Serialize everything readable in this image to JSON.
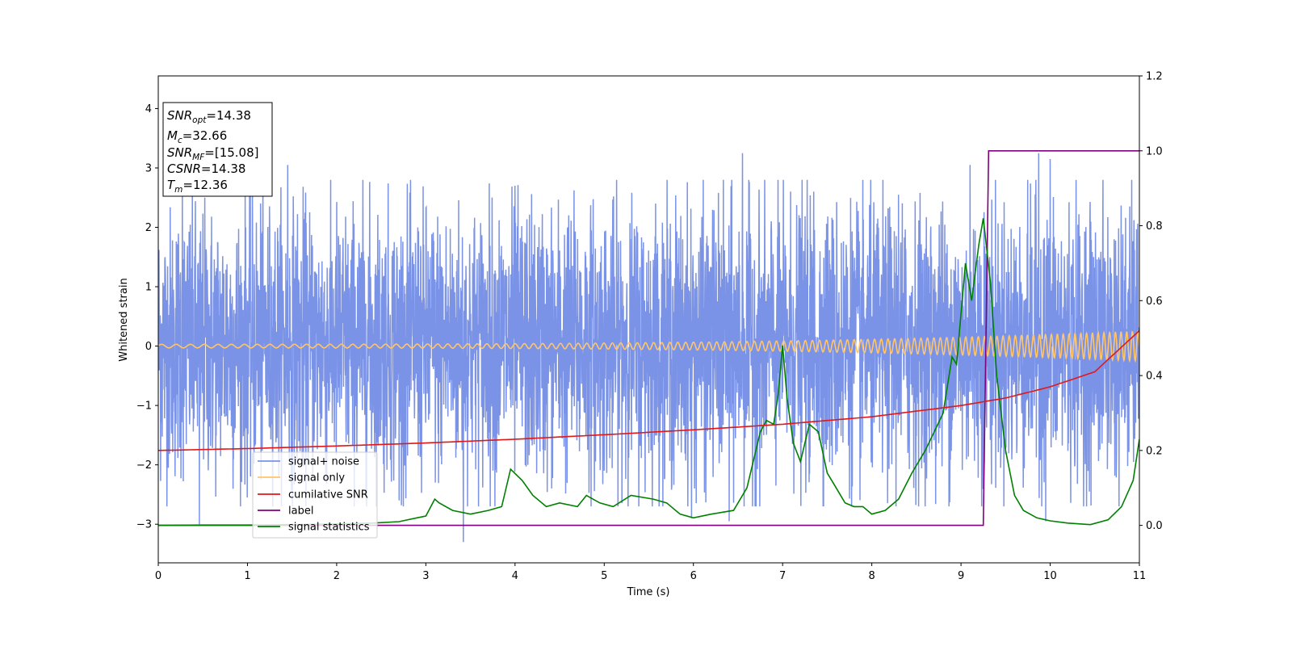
{
  "chart_data": {
    "type": "line",
    "xlabel": "Time (s)",
    "ylabel": "Whitened strain",
    "xlim": [
      0,
      11
    ],
    "ylim_left": [
      -3.65,
      4.55
    ],
    "ylim_right": [
      -0.1,
      1.2
    ],
    "x_ticks": [
      0,
      1,
      2,
      3,
      4,
      5,
      6,
      7,
      8,
      9,
      10,
      11
    ],
    "y_ticks_left": [
      -3,
      -2,
      -1,
      0,
      1,
      2,
      3,
      4
    ],
    "y_ticks_right": [
      "0.0",
      "0.2",
      "0.4",
      "0.6",
      "0.8",
      "1.0",
      "1.2"
    ],
    "info_box": [
      {
        "main": "SNR",
        "sub": "opt",
        "rest": "=14.38"
      },
      {
        "main": "M",
        "sub": "c",
        "rest": "=32.66"
      },
      {
        "main": "SNR",
        "sub": "MF",
        "rest": "=[15.08]"
      },
      {
        "main": "CSNR",
        "sub": "",
        "rest": "=14.38"
      },
      {
        "main": "T",
        "sub": "m",
        "rest": "=12.36"
      }
    ],
    "legend_position": "lower-left",
    "series": [
      {
        "name": "signal+ noise",
        "axis": "left",
        "color": "#7b93e6",
        "description": "dense noise trace",
        "envelope_low": -2.0,
        "envelope_high": 2.1,
        "peaks": [
          [
            0.27,
            2.6
          ],
          [
            1.45,
            3.05
          ],
          [
            4.0,
            2.7
          ],
          [
            6.55,
            3.25
          ],
          [
            7.35,
            2.6
          ],
          [
            8.3,
            2.55
          ],
          [
            9.1,
            3.05
          ],
          [
            9.87,
            3.25
          ],
          [
            10.0,
            3.15
          ],
          [
            0.46,
            -3.0
          ],
          [
            3.42,
            -3.3
          ],
          [
            5.98,
            -2.9
          ],
          [
            6.4,
            -2.95
          ],
          [
            9.95,
            -2.95
          ],
          [
            2.7,
            -2.6
          ]
        ]
      },
      {
        "name": "signal only",
        "axis": "left",
        "color": "#ffc56b",
        "description": "chirp oscillation around 0",
        "amplitude_start": 0.03,
        "amplitude_end": 0.25
      },
      {
        "name": "cumilative SNR",
        "axis": "right",
        "color": "#e01818",
        "x": [
          0,
          1,
          2,
          3,
          4,
          5,
          6,
          7,
          8,
          9,
          9.5,
          10,
          10.5,
          11
        ],
        "y": [
          0.2,
          0.205,
          0.212,
          0.22,
          0.23,
          0.242,
          0.255,
          0.27,
          0.29,
          0.32,
          0.34,
          0.37,
          0.41,
          0.52
        ]
      },
      {
        "name": "label",
        "axis": "right",
        "color": "#800080",
        "x": [
          0,
          9.25,
          9.31,
          11
        ],
        "y": [
          0,
          0,
          1.0,
          1.0
        ]
      },
      {
        "name": "signal statistics",
        "axis": "right",
        "color": "#008000",
        "x": [
          0,
          0.5,
          1,
          1.5,
          2,
          2.4,
          2.7,
          2.9,
          3.0,
          3.1,
          3.15,
          3.3,
          3.5,
          3.7,
          3.85,
          3.95,
          4.08,
          4.2,
          4.35,
          4.5,
          4.7,
          4.8,
          4.95,
          5.1,
          5.3,
          5.55,
          5.7,
          5.85,
          6.0,
          6.2,
          6.45,
          6.6,
          6.75,
          6.82,
          6.9,
          6.95,
          7.0,
          7.05,
          7.12,
          7.2,
          7.3,
          7.4,
          7.5,
          7.6,
          7.7,
          7.8,
          7.9,
          8.0,
          8.15,
          8.3,
          8.45,
          8.6,
          8.7,
          8.8,
          8.9,
          8.95,
          9.05,
          9.12,
          9.2,
          9.25,
          9.33,
          9.4,
          9.5,
          9.6,
          9.7,
          9.85,
          10.0,
          10.2,
          10.45,
          10.65,
          10.8,
          10.93,
          11.0
        ],
        "y": [
          0,
          0.001,
          0.001,
          0.002,
          0.004,
          0.006,
          0.01,
          0.02,
          0.025,
          0.07,
          0.06,
          0.04,
          0.03,
          0.04,
          0.05,
          0.15,
          0.12,
          0.08,
          0.05,
          0.06,
          0.05,
          0.08,
          0.06,
          0.05,
          0.08,
          0.07,
          0.06,
          0.03,
          0.02,
          0.03,
          0.04,
          0.1,
          0.25,
          0.28,
          0.27,
          0.35,
          0.48,
          0.34,
          0.22,
          0.17,
          0.27,
          0.25,
          0.14,
          0.1,
          0.06,
          0.05,
          0.05,
          0.03,
          0.04,
          0.07,
          0.14,
          0.2,
          0.25,
          0.3,
          0.45,
          0.43,
          0.7,
          0.6,
          0.75,
          0.82,
          0.65,
          0.4,
          0.2,
          0.08,
          0.04,
          0.02,
          0.012,
          0.006,
          0.002,
          0.015,
          0.05,
          0.12,
          0.23
        ]
      }
    ]
  }
}
